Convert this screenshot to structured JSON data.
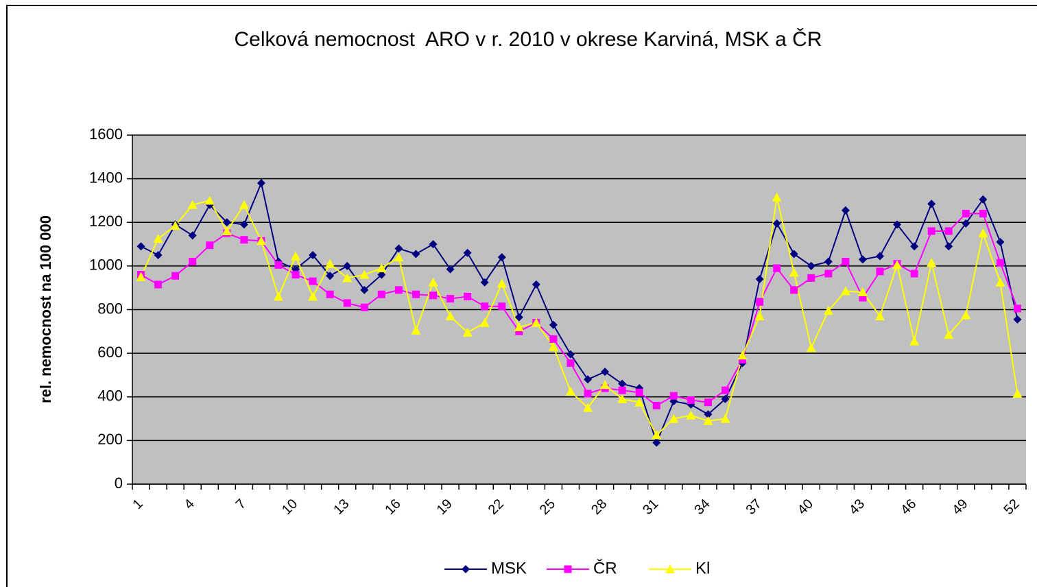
{
  "chart_data": {
    "type": "line",
    "title": "Celková nemocnost  ARO v r. 2010 v okrese Karviná, MSK a ČR",
    "y_label": "rel. nemocnost na 100 000",
    "categories": [
      "1",
      null,
      null,
      "4",
      null,
      null,
      "7",
      null,
      null,
      "10",
      null,
      null,
      "13",
      null,
      null,
      "16",
      null,
      null,
      "19",
      null,
      null,
      "22",
      null,
      null,
      "25",
      null,
      null,
      "28",
      null,
      null,
      "31",
      null,
      null,
      "34",
      null,
      null,
      "37",
      null,
      null,
      "40",
      null,
      null,
      "43",
      null,
      null,
      "46",
      null,
      null,
      "49",
      null,
      null,
      "52"
    ],
    "series": [
      {
        "name": "MSK",
        "color": "#000080",
        "marker": "diamond",
        "values": [
          1090,
          1050,
          1190,
          1140,
          1280,
          1200,
          1190,
          1380,
          1020,
          985,
          1050,
          955,
          1000,
          890,
          960,
          1080,
          1055,
          1100,
          985,
          1060,
          925,
          1040,
          765,
          915,
          730,
          595,
          480,
          515,
          460,
          440,
          190,
          380,
          365,
          320,
          390,
          555,
          940,
          1195,
          1055,
          1000,
          1020,
          1255,
          1030,
          1045,
          1190,
          1090,
          1285,
          1090,
          1195,
          1305,
          1110,
          755
        ]
      },
      {
        "name": "ČR",
        "color": "#ff00ff",
        "marker": "square",
        "values": [
          960,
          915,
          955,
          1020,
          1095,
          1150,
          1120,
          1115,
          1005,
          960,
          930,
          870,
          830,
          810,
          870,
          890,
          870,
          865,
          850,
          860,
          815,
          815,
          700,
          740,
          665,
          555,
          415,
          440,
          430,
          420,
          360,
          405,
          385,
          375,
          430,
          570,
          835,
          990,
          890,
          945,
          965,
          1020,
          855,
          975,
          1010,
          965,
          1160,
          1160,
          1240,
          1240,
          1015,
          805
        ]
      },
      {
        "name": "Kl",
        "color": "#ffff00",
        "marker": "triangle",
        "values": [
          950,
          1125,
          1185,
          1280,
          1300,
          1160,
          1280,
          1115,
          860,
          1045,
          860,
          1010,
          945,
          960,
          990,
          1040,
          705,
          925,
          770,
          695,
          740,
          920,
          720,
          740,
          630,
          425,
          350,
          455,
          390,
          375,
          225,
          300,
          315,
          290,
          300,
          590,
          770,
          1315,
          970,
          625,
          795,
          885,
          880,
          770,
          1005,
          655,
          1015,
          685,
          775,
          1150,
          925,
          415
        ]
      }
    ],
    "ylim": [
      0,
      1600
    ],
    "yticks": [
      0,
      200,
      400,
      600,
      800,
      1000,
      1200,
      1400,
      1600
    ],
    "grid": true,
    "legend": "bottom",
    "plot_background": "#c0c0c0"
  }
}
